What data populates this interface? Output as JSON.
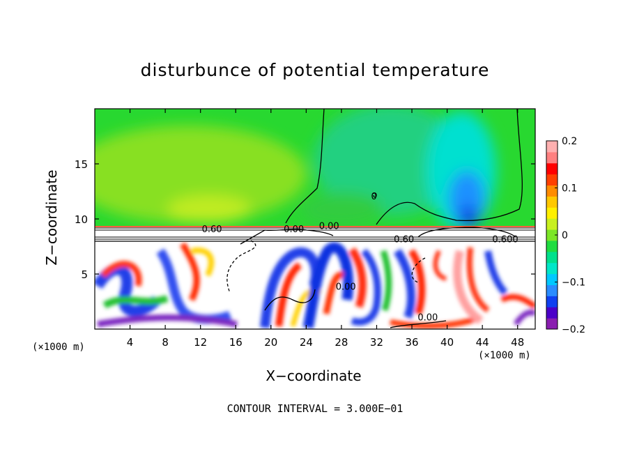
{
  "chart_data": {
    "type": "heatmap",
    "title": "disturbunce of potential temperature",
    "xlabel": "X−coordinate",
    "ylabel": "Z−coordinate",
    "x_unit": "(×1000 m)",
    "x_unit_right": "(×1000 m)",
    "xlim": [
      0,
      50
    ],
    "ylim": [
      0,
      20
    ],
    "x_ticks": [
      4,
      8,
      12,
      16,
      20,
      24,
      28,
      32,
      36,
      40,
      44,
      48
    ],
    "y_ticks": [
      5,
      10,
      15
    ],
    "colorbar": {
      "range": [
        -0.2,
        0.2
      ],
      "ticks": [
        0.2,
        0.1,
        0,
        -0.1,
        -0.2
      ],
      "tick_labels": [
        "0.2",
        "0.1",
        "0",
        "−0.1",
        "−0.2"
      ],
      "colors": [
        "#8a1eb0",
        "#4b00c8",
        "#1040f0",
        "#2a8cff",
        "#00c8ff",
        "#00e6c8",
        "#00e08c",
        "#20dc40",
        "#7ce628",
        "#c8f020",
        "#fff000",
        "#ffc800",
        "#ff8c00",
        "#ff4000",
        "#ff0000",
        "#ff8080",
        "#ffb0b0"
      ]
    },
    "contour_labels": [
      {
        "text": "0.60",
        "x": 13.3,
        "y": 9.1
      },
      {
        "text": "0.00",
        "x": 22.6,
        "y": 9.1
      },
      {
        "text": "0.00",
        "x": 26.6,
        "y": 9.4
      },
      {
        "text": "0.60",
        "x": 35.1,
        "y": 8.2
      },
      {
        "text": "0.600",
        "x": 46.6,
        "y": 8.2
      },
      {
        "text": "0.00",
        "x": 28.5,
        "y": 3.9
      },
      {
        "text": "0.00",
        "x": 37.8,
        "y": 1.1
      },
      {
        "text": "0",
        "x": 31.7,
        "y": 12.1
      }
    ],
    "contour_interval_text": "CONTOUR INTERVAL = 3.000E−01",
    "grid": false
  }
}
